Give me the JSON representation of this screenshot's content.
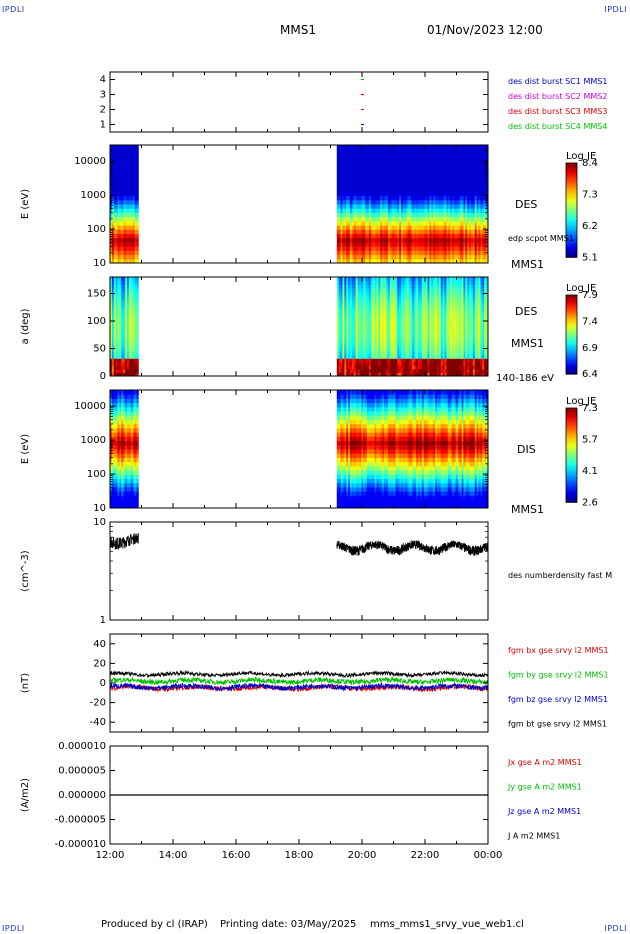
{
  "header": {
    "logo_tl": "IPDLI",
    "logo_tr": "IPDLI",
    "logo_bl": "IPDLI",
    "logo_br": "IPDLI",
    "mission": "MMS1",
    "datetime": "01/Nov/2023 12:00"
  },
  "footer": {
    "produced_by": "Produced by cl (IRAP)",
    "printing_date": "Printing date: 03/May/2025",
    "filename": "mms_mms1_srvy_vue_web1.cl"
  },
  "colors": {
    "blue": "#0000c8",
    "magenta": "#d400d4",
    "red": "#e00000",
    "green": "#00c000",
    "black": "#000000"
  },
  "chart_data": [
    {
      "id": "burst",
      "type": "scatter",
      "ylabel": "",
      "ylim": [
        0.5,
        4.5
      ],
      "yticks": [
        "1",
        "2",
        "3",
        "4"
      ],
      "legend": [
        {
          "text": "des dist burst SC1 MMS1",
          "color": "#0000c8"
        },
        {
          "text": "des dist burst SC2 MMS2",
          "color": "#d400d4"
        },
        {
          "text": "des dist burst SC3 MMS3",
          "color": "#e00000"
        },
        {
          "text": "des dist burst SC4 MMS4",
          "color": "#00c000"
        }
      ],
      "points": [
        {
          "x": 20.0,
          "y": 1,
          "color": "#0000c8"
        },
        {
          "x": 20.0,
          "y": 2,
          "color": "#d400d4"
        },
        {
          "x": 20.0,
          "y": 3,
          "color": "#e00000"
        },
        {
          "x": 20.0,
          "y": 4,
          "color": "#00c000"
        }
      ]
    },
    {
      "id": "des_energy",
      "type": "heatmap",
      "ylabel": "E (eV)",
      "yscale": "log",
      "ylim": [
        10,
        30000
      ],
      "yticks": [
        "10",
        "100",
        "1000",
        "10000"
      ],
      "labels": [
        "DES",
        "edp scpot MMS1",
        "MMS1"
      ],
      "colorbar": {
        "title": "Log JE",
        "min": 5.1,
        "max": 8.4,
        "ticks": [
          "8.4",
          "7.3",
          "6.2",
          "5.1"
        ]
      },
      "data_intervals": [
        [
          12.0,
          12.9
        ],
        [
          19.2,
          24.0
        ]
      ]
    },
    {
      "id": "des_pitch",
      "type": "heatmap",
      "ylabel": "a (deg)",
      "ylim": [
        0,
        180
      ],
      "yticks": [
        "0",
        "50",
        "100",
        "150"
      ],
      "labels": [
        "DES",
        "MMS1",
        "140-186 eV"
      ],
      "colorbar": {
        "title": "Log JE",
        "min": 6.4,
        "max": 7.9,
        "ticks": [
          "7.9",
          "7.4",
          "6.9",
          "6.4"
        ]
      },
      "data_intervals": [
        [
          12.0,
          12.9
        ],
        [
          19.2,
          24.0
        ]
      ]
    },
    {
      "id": "dis_energy",
      "type": "heatmap",
      "ylabel": "E (eV)",
      "yscale": "log",
      "ylim": [
        10,
        30000
      ],
      "yticks": [
        "10",
        "100",
        "1000",
        "10000"
      ],
      "labels": [
        "DIS",
        "MMS1"
      ],
      "colorbar": {
        "title": "Log JE",
        "min": 2.6,
        "max": 7.3,
        "ticks": [
          "7.3",
          "5.7",
          "4.1",
          "2.6"
        ]
      },
      "data_intervals": [
        [
          12.0,
          12.9
        ],
        [
          19.2,
          24.0
        ]
      ]
    },
    {
      "id": "density",
      "type": "line",
      "ylabel": "(cm^-3)",
      "yscale": "log",
      "ylim": [
        1,
        10
      ],
      "yticks": [
        "1",
        "10"
      ],
      "legend": [
        {
          "text": "des numberdensity fast M",
          "color": "#000000"
        }
      ],
      "series": [
        {
          "segments": [
            {
              "x0": 12.0,
              "x1": 12.9,
              "mean": 6.5,
              "amp": 0.9
            },
            {
              "x0": 19.2,
              "x1": 24.0,
              "mean": 5.5,
              "amp": 0.6
            }
          ]
        }
      ]
    },
    {
      "id": "fgm",
      "type": "line",
      "ylabel": "(nT)",
      "ylim": [
        -50,
        50
      ],
      "yticks": [
        "-40",
        "-20",
        "0",
        "20",
        "40"
      ],
      "legend": [
        {
          "text": "fgm bx gse srvy l2 MMS1",
          "color": "#e00000"
        },
        {
          "text": "fgm by gse srvy l2 MMS1",
          "color": "#00c000"
        },
        {
          "text": "fgm bz gse srvy l2 MMS1",
          "color": "#0000c8"
        },
        {
          "text": "fgm bt gse srvy l2 MMS1",
          "color": "#000000"
        }
      ],
      "series": [
        {
          "color": "#e00000",
          "mean": -5,
          "amp": 2.5
        },
        {
          "color": "#00c000",
          "mean": 2,
          "amp": 2.5
        },
        {
          "color": "#0000c8",
          "mean": -4,
          "amp": 2.5
        },
        {
          "color": "#000000",
          "mean": 9,
          "amp": 1.8
        }
      ]
    },
    {
      "id": "current",
      "type": "line",
      "ylabel": "(A/m2)",
      "ylim": [
        -1e-05,
        1e-05
      ],
      "yticks": [
        "-0.000010",
        "-0.000005",
        "0.000000",
        "0.000005",
        "0.000010"
      ],
      "legend": [
        {
          "text": "Jx gse A m2 MMS1",
          "color": "#e00000"
        },
        {
          "text": "Jy gse A m2 MMS1",
          "color": "#00c000"
        },
        {
          "text": "Jz gse A m2 MMS1",
          "color": "#0000c8"
        },
        {
          "text": "J A m2 MMS1",
          "color": "#000000"
        }
      ],
      "series": [
        {
          "color": "#000000",
          "value": 0
        }
      ]
    }
  ],
  "time_axis": {
    "range": [
      12,
      24
    ],
    "ticks": [
      "12:00",
      "14:00",
      "16:00",
      "18:00",
      "20:00",
      "22:00",
      "00:00"
    ]
  }
}
